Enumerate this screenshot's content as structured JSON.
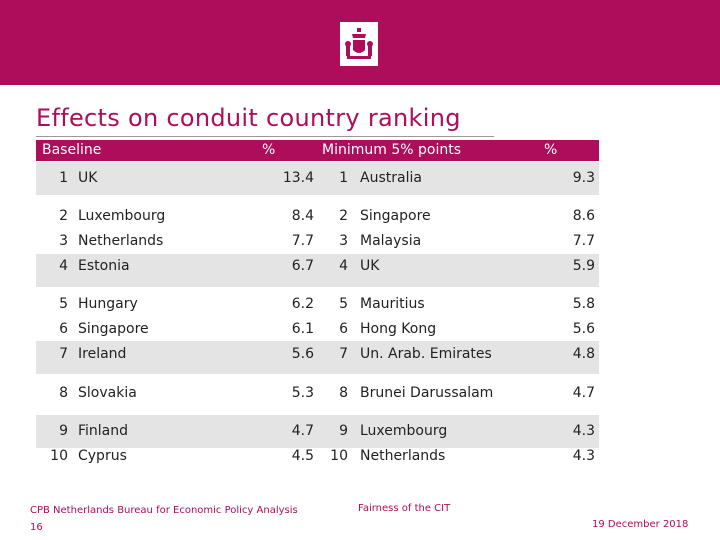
{
  "title": "Effects on conduit country ranking",
  "headers": {
    "baseline": "Baseline",
    "pct1": "%",
    "minimum": "Minimum 5% points",
    "pct2": "%"
  },
  "rows": [
    {
      "rank1": "1",
      "country1": "UK",
      "value1": "13.4",
      "rank2": "1",
      "country2": "Australia",
      "value2": "9.3"
    },
    {
      "rank1": "2",
      "country1": "Luxembourg",
      "value1": "8.4",
      "rank2": "2",
      "country2": "Singapore",
      "value2": "8.6"
    },
    {
      "rank1": "3",
      "country1": "Netherlands",
      "value1": "7.7",
      "rank2": "3",
      "country2": "Malaysia",
      "value2": "7.7"
    },
    {
      "rank1": "4",
      "country1": "Estonia",
      "value1": "6.7",
      "rank2": "4",
      "country2": "UK",
      "value2": "5.9"
    },
    {
      "rank1": "5",
      "country1": "Hungary",
      "value1": "6.2",
      "rank2": "5",
      "country2": "Mauritius",
      "value2": "5.8"
    },
    {
      "rank1": "6",
      "country1": "Singapore",
      "value1": "6.1",
      "rank2": "6",
      "country2": "Hong Kong",
      "value2": "5.6"
    },
    {
      "rank1": "7",
      "country1": "Ireland",
      "value1": "5.6",
      "rank2": "7",
      "country2": "Un. Arab. Emirates",
      "value2": "4.8"
    },
    {
      "rank1": "8",
      "country1": "Slovakia",
      "value1": "5.3",
      "rank2": "8",
      "country2": "Brunei Darussalam",
      "value2": "4.7"
    },
    {
      "rank1": "9",
      "country1": "Finland",
      "value1": "4.7",
      "rank2": "9",
      "country2": "Luxembourg",
      "value2": "4.3"
    },
    {
      "rank1": "10",
      "country1": "Cyprus",
      "value1": "4.5",
      "rank2": "10",
      "country2": "Netherlands",
      "value2": "4.3"
    }
  ],
  "footer": {
    "org": "CPB Netherlands Bureau for Economic Policy Analysis",
    "page": "16",
    "topic": "Fairness of the CIT",
    "date": "19 December 2018"
  },
  "colors": {
    "brand": "#ad0d5b",
    "band": "#e4e4e4"
  },
  "icons": {
    "logo": "coat-of-arms-icon"
  }
}
